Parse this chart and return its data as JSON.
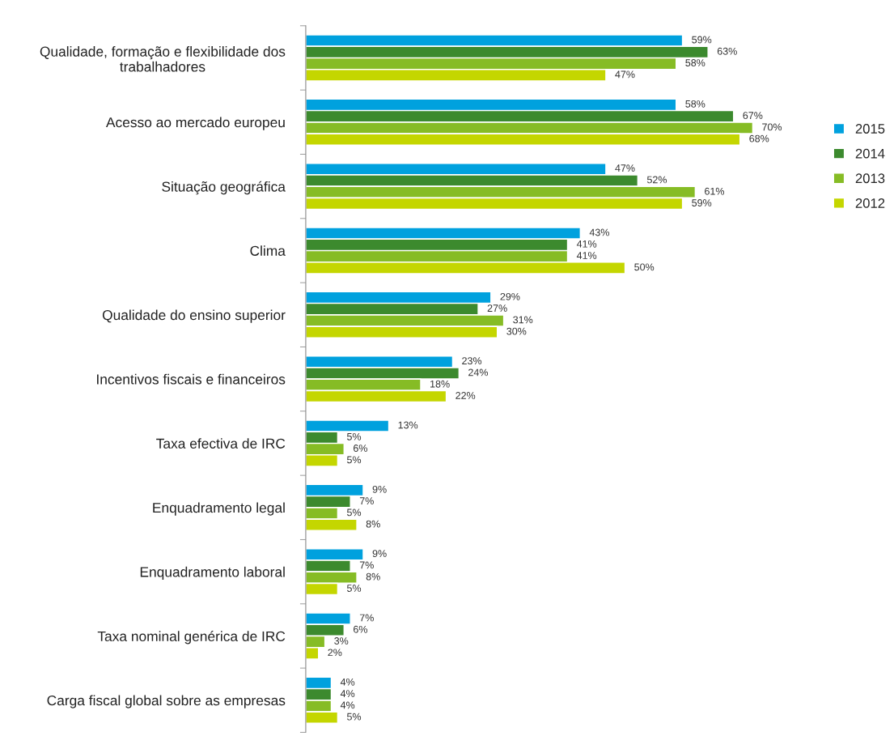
{
  "chart_data": {
    "type": "bar",
    "orientation": "horizontal",
    "categories": [
      "Qualidade, formação e flexibilidade dos\ntrabalhadores",
      "Acesso ao mercado europeu",
      "Situação geográfica",
      "Clima",
      "Qualidade do ensino superior",
      "Incentivos fiscais e financeiros",
      "Taxa efectiva de IRC",
      "Enquadramento legal",
      "Enquadramento laboral",
      "Taxa nominal genérica de IRC",
      "Carga fiscal global sobre as empresas"
    ],
    "series": [
      {
        "name": "2015",
        "color": "#00a1de",
        "values": [
          59,
          58,
          47,
          43,
          29,
          23,
          13,
          9,
          9,
          7,
          4
        ],
        "value_labels": [
          "59%",
          "58%",
          "47%",
          "43%",
          "29%",
          "23%",
          "13%",
          "9%",
          "9%",
          "7%",
          "4%"
        ]
      },
      {
        "name": "2014",
        "color": "#3c8a2e",
        "values": [
          63,
          67,
          52,
          41,
          27,
          24,
          5,
          7,
          7,
          6,
          4
        ],
        "value_labels": [
          "63%",
          "67%",
          "52%",
          "41%",
          "27%",
          "24%",
          "5%",
          "7%",
          "7%",
          "6%",
          "4%"
        ]
      },
      {
        "name": "2013",
        "color": "#86bc25",
        "values": [
          58,
          70,
          61,
          41,
          31,
          18,
          6,
          5,
          8,
          3,
          4
        ],
        "value_labels": [
          "58%",
          "70%",
          "61%",
          "41%",
          "31%",
          "18%",
          "6%",
          "5%",
          "8%",
          "3%",
          "4%"
        ]
      },
      {
        "name": "2012",
        "color": "#c4d600",
        "values": [
          47,
          68,
          59,
          50,
          30,
          22,
          5,
          8,
          5,
          2,
          5
        ],
        "value_labels": [
          "47%",
          "68%",
          "59%",
          "50%",
          "30%",
          "22%",
          "5%",
          "8%",
          "5%",
          "2%",
          "5%"
        ]
      }
    ],
    "legend": "right",
    "tick_labels": "y"
  }
}
